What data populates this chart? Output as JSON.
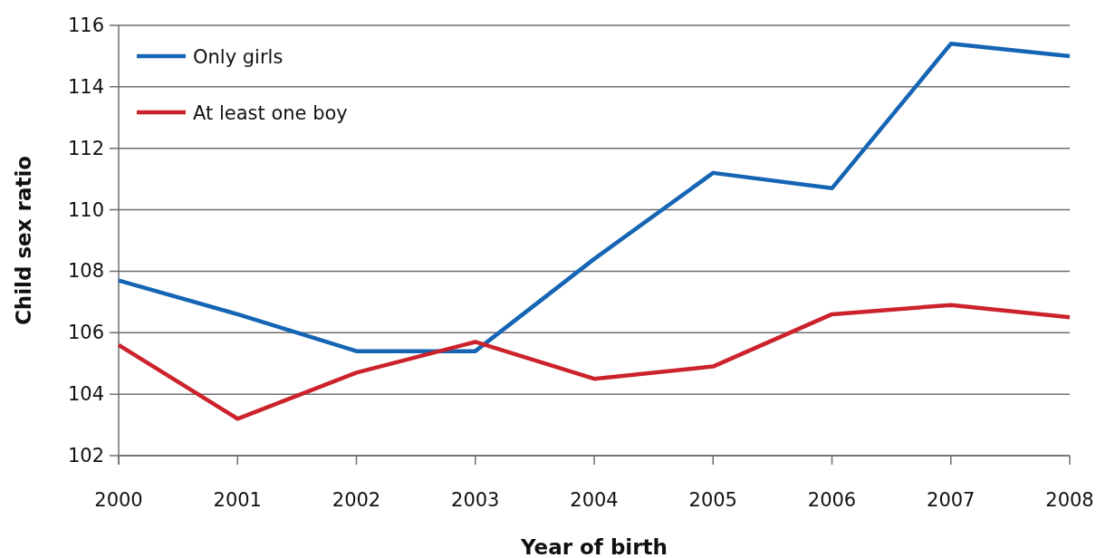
{
  "chart_data": {
    "type": "line",
    "xlabel": "Year of birth",
    "ylabel": "Child sex ratio",
    "x": [
      2000,
      2001,
      2002,
      2003,
      2004,
      2005,
      2006,
      2007,
      2008
    ],
    "xlim": [
      2000,
      2008
    ],
    "xticks": [
      2000,
      2001,
      2002,
      2003,
      2004,
      2005,
      2006,
      2007,
      2008
    ],
    "ylim": [
      102,
      116
    ],
    "yticks": [
      102,
      104,
      106,
      108,
      110,
      112,
      114,
      116
    ],
    "grid": "y",
    "legend": "top left",
    "marker": "none",
    "line_style": "solid",
    "series": [
      {
        "name": "Only girls",
        "color": "#1565b4",
        "values": [
          107.7,
          106.6,
          105.4,
          105.4,
          108.4,
          111.2,
          110.7,
          115.4,
          115.0
        ]
      },
      {
        "name": "At least one boy",
        "color": "#cc222b",
        "values": [
          105.6,
          103.2,
          104.7,
          105.7,
          104.5,
          104.9,
          106.6,
          106.9,
          106.5
        ]
      }
    ]
  }
}
